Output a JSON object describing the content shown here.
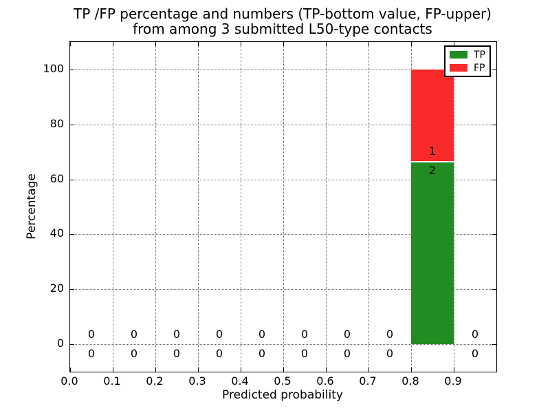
{
  "chart_data": {
    "type": "bar",
    "stacked": true,
    "title_line1": "TP /FP percentage and numbers (TP-bottom value, FP-upper)",
    "title_line2": "from among 3 submitted L50-type contacts",
    "xlabel": "Predicted probability",
    "ylabel": "Percentage",
    "xlim": [
      0.0,
      1.0
    ],
    "ylim": [
      -10,
      110
    ],
    "xticks": [
      0.0,
      0.1,
      0.2,
      0.3,
      0.4,
      0.5,
      0.6,
      0.7,
      0.8,
      0.9
    ],
    "yticks": [
      0,
      20,
      40,
      60,
      80,
      100
    ],
    "grid": "dotted",
    "bins": {
      "starts": [
        0.0,
        0.1,
        0.2,
        0.3,
        0.4,
        0.5,
        0.6,
        0.7,
        0.8,
        0.9
      ],
      "width": 0.1
    },
    "series": [
      {
        "name": "TP",
        "color": "#228b22",
        "percentages": [
          0,
          0,
          0,
          0,
          0,
          0,
          0,
          0,
          66.67,
          0
        ],
        "counts": [
          0,
          0,
          0,
          0,
          0,
          0,
          0,
          0,
          2,
          0
        ]
      },
      {
        "name": "FP",
        "color": "#fa2a2a",
        "percentages": [
          0,
          0,
          0,
          0,
          0,
          0,
          0,
          0,
          33.33,
          0
        ],
        "counts": [
          0,
          0,
          0,
          0,
          0,
          0,
          0,
          0,
          1,
          0
        ]
      }
    ],
    "legend": {
      "position": "upper right",
      "entries": [
        {
          "label": "TP",
          "color": "#228b22"
        },
        {
          "label": "FP",
          "color": "#fa2a2a"
        }
      ]
    },
    "annotation_note": "TP-bottom value, FP-upper",
    "totals": {
      "submitted_contacts": 3
    }
  }
}
